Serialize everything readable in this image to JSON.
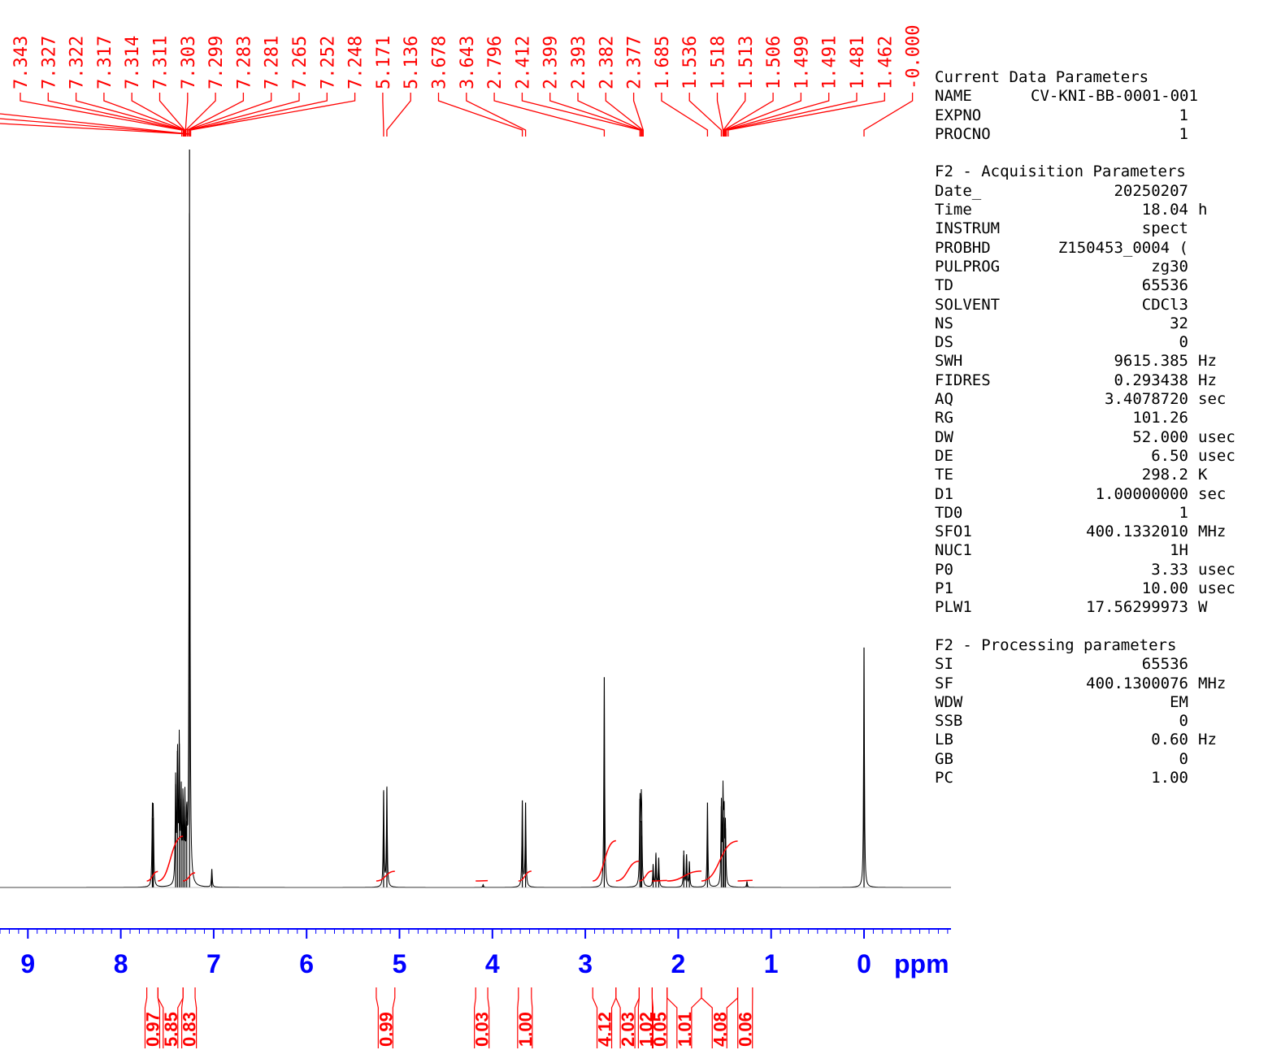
{
  "chart_data": {
    "type": "line",
    "title": "",
    "xlabel": "ppm",
    "ylabel": "",
    "xlim": [
      9.3,
      -0.93
    ],
    "x_axis_reversed": true,
    "x_ticks": [
      9,
      8,
      7,
      6,
      5,
      4,
      3,
      2,
      1,
      0
    ],
    "x_tick_labels": [
      "9",
      "8",
      "7",
      "6",
      "5",
      "4",
      "3",
      "2",
      "1",
      "0"
    ],
    "grid": false,
    "series": [
      {
        "values": [
          {
            "ppm": 7.66,
            "intensity": 0.095
          },
          {
            "ppm": 7.65,
            "intensity": 0.095
          },
          {
            "ppm": 7.41,
            "intensity": 0.14
          },
          {
            "ppm": 7.39,
            "intensity": 0.185
          },
          {
            "ppm": 7.37,
            "intensity": 0.195
          },
          {
            "ppm": 7.35,
            "intensity": 0.12
          },
          {
            "ppm": 7.33,
            "intensity": 0.12
          },
          {
            "ppm": 7.31,
            "intensity": 0.11
          },
          {
            "ppm": 7.29,
            "intensity": 0.09
          },
          {
            "ppm": 7.26,
            "intensity": 1.0
          },
          {
            "ppm": 7.02,
            "intensity": 0.025
          },
          {
            "ppm": 5.171,
            "intensity": 0.13
          },
          {
            "ppm": 5.136,
            "intensity": 0.135
          },
          {
            "ppm": 4.1,
            "intensity": 0.004
          },
          {
            "ppm": 3.678,
            "intensity": 0.118
          },
          {
            "ppm": 3.643,
            "intensity": 0.115
          },
          {
            "ppm": 2.796,
            "intensity": 0.285
          },
          {
            "ppm": 2.412,
            "intensity": 0.12
          },
          {
            "ppm": 2.399,
            "intensity": 0.09
          },
          {
            "ppm": 2.393,
            "intensity": 0.07
          },
          {
            "ppm": 2.27,
            "intensity": 0.03
          },
          {
            "ppm": 2.24,
            "intensity": 0.045
          },
          {
            "ppm": 2.21,
            "intensity": 0.04
          },
          {
            "ppm": 1.94,
            "intensity": 0.05
          },
          {
            "ppm": 1.91,
            "intensity": 0.045
          },
          {
            "ppm": 1.88,
            "intensity": 0.035
          },
          {
            "ppm": 1.685,
            "intensity": 0.115
          },
          {
            "ppm": 1.536,
            "intensity": 0.11
          },
          {
            "ppm": 1.518,
            "intensity": 0.12
          },
          {
            "ppm": 1.506,
            "intensity": 0.095
          },
          {
            "ppm": 1.491,
            "intensity": 0.08
          },
          {
            "ppm": 1.26,
            "intensity": 0.008
          },
          {
            "ppm": 0.0,
            "intensity": 0.325
          }
        ]
      }
    ],
    "peak_labels": [
      "7.343",
      "7.327",
      "7.322",
      "7.317",
      "7.314",
      "7.311",
      "7.303",
      "7.299",
      "7.283",
      "7.281",
      "7.265",
      "7.252",
      "7.248",
      "5.171",
      "5.136",
      "3.678",
      "3.643",
      "2.796",
      "2.412",
      "2.399",
      "2.393",
      "2.382",
      "2.377",
      "1.685",
      "1.536",
      "1.518",
      "1.513",
      "1.506",
      "1.499",
      "1.491",
      "1.481",
      "1.462",
      "-0.000"
    ],
    "integrals": [
      {
        "from": 7.72,
        "to": 7.6,
        "label": "0.97"
      },
      {
        "from": 7.6,
        "to": 7.33,
        "label": "5.85"
      },
      {
        "from": 7.33,
        "to": 7.2,
        "label": "0.83"
      },
      {
        "from": 5.25,
        "to": 5.05,
        "label": "0.99"
      },
      {
        "from": 4.18,
        "to": 4.05,
        "label": "0.03"
      },
      {
        "from": 3.72,
        "to": 3.58,
        "label": "1.00"
      },
      {
        "from": 2.92,
        "to": 2.67,
        "label": "4.12"
      },
      {
        "from": 2.67,
        "to": 2.42,
        "label": "2.03"
      },
      {
        "from": 2.42,
        "to": 2.28,
        "label": "1.02"
      },
      {
        "from": 2.28,
        "to": 2.12,
        "label": "0.05"
      },
      {
        "from": 2.12,
        "to": 1.75,
        "label": "1.01"
      },
      {
        "from": 1.75,
        "to": 1.36,
        "label": "4.08"
      },
      {
        "from": 1.36,
        "to": 1.2,
        "label": "0.06"
      }
    ]
  },
  "params": {
    "header": {
      "title": "Current Data Parameters",
      "rows": [
        [
          "NAME",
          "CV-KNI-BB-0001-001",
          ""
        ],
        [
          "EXPNO",
          "1",
          ""
        ],
        [
          "PROCNO",
          "1",
          ""
        ]
      ]
    },
    "acq": {
      "title": "F2 - Acquisition Parameters",
      "rows": [
        [
          "Date_",
          "20250207",
          ""
        ],
        [
          "Time",
          "18.04",
          "h"
        ],
        [
          "INSTRUM",
          "spect",
          ""
        ],
        [
          "PROBHD",
          "Z150453_0004 (",
          ""
        ],
        [
          "PULPROG",
          "zg30",
          ""
        ],
        [
          "TD",
          "65536",
          ""
        ],
        [
          "SOLVENT",
          "CDCl3",
          ""
        ],
        [
          "NS",
          "32",
          ""
        ],
        [
          "DS",
          "0",
          ""
        ],
        [
          "SWH",
          "9615.385",
          "Hz"
        ],
        [
          "FIDRES",
          "0.293438",
          "Hz"
        ],
        [
          "AQ",
          "3.4078720",
          "sec"
        ],
        [
          "RG",
          "101.26",
          ""
        ],
        [
          "DW",
          "52.000",
          "usec"
        ],
        [
          "DE",
          "6.50",
          "usec"
        ],
        [
          "TE",
          "298.2",
          "K"
        ],
        [
          "D1",
          "1.00000000",
          "sec"
        ],
        [
          "TD0",
          "1",
          ""
        ],
        [
          "SFO1",
          "400.1332010",
          "MHz"
        ],
        [
          "NUC1",
          "1H",
          ""
        ],
        [
          "P0",
          "3.33",
          "usec"
        ],
        [
          "P1",
          "10.00",
          "usec"
        ],
        [
          "PLW1",
          "17.56299973",
          "W"
        ]
      ]
    },
    "proc": {
      "title": "F2 - Processing parameters",
      "rows": [
        [
          "SI",
          "65536",
          ""
        ],
        [
          "SF",
          "400.1300076",
          "MHz"
        ],
        [
          "WDW",
          "EM",
          ""
        ],
        [
          "SSB",
          "0",
          ""
        ],
        [
          "LB",
          "0.60",
          "Hz"
        ],
        [
          "GB",
          "0",
          ""
        ],
        [
          "PC",
          "1.00",
          ""
        ]
      ]
    }
  },
  "colors": {
    "spectrum": "#000000",
    "annotation": "#ff0000",
    "axis": "#0000ff"
  }
}
